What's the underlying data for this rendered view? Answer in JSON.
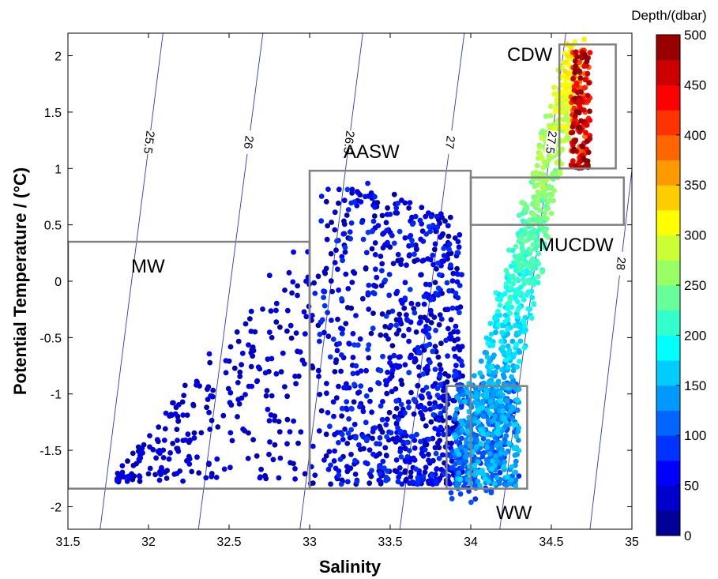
{
  "chart_data": {
    "type": "scatter",
    "xlabel": "Salinity",
    "ylabel": "Potential Temperature / (°C)",
    "xlim": [
      31.5,
      35
    ],
    "ylim": [
      -2.2,
      2.2
    ],
    "xticks": [
      "31.5",
      "32",
      "32.5",
      "33",
      "33.5",
      "34",
      "34.5",
      "35"
    ],
    "yticks": [
      "-2",
      "-1.5",
      "-1",
      "-0.5",
      "0",
      "0.5",
      "1",
      "1.5",
      "2"
    ],
    "colorbar": {
      "title": "Depth/(dbar)",
      "range": [
        0,
        500
      ],
      "ticks": [
        "0",
        "50",
        "100",
        "150",
        "200",
        "250",
        "300",
        "350",
        "400",
        "450",
        "500"
      ],
      "colormap": "jet"
    },
    "isopycnals": [
      {
        "label": "25.5",
        "bottom": [
          31.7,
          -2.2
        ],
        "top": [
          32.09,
          2.2
        ]
      },
      {
        "label": "26",
        "bottom": [
          32.31,
          -2.2
        ],
        "top": [
          32.71,
          2.2
        ]
      },
      {
        "label": "26.5",
        "bottom": [
          32.94,
          -2.2
        ],
        "top": [
          33.33,
          2.2
        ]
      },
      {
        "label": "27",
        "bottom": [
          33.56,
          -2.2
        ],
        "top": [
          33.96,
          2.2
        ]
      },
      {
        "label": "27.5",
        "bottom": [
          34.18,
          -2.2
        ],
        "top": [
          34.59,
          2.2
        ]
      },
      {
        "label": "28",
        "bottom": [
          34.74,
          -2.2
        ],
        "top": [
          35.05,
          1.6
        ]
      }
    ],
    "water_masses": [
      {
        "label": "CDW",
        "s": [
          34.55,
          34.9
        ],
        "t": [
          1.0,
          2.1
        ]
      },
      {
        "label": "AASW",
        "s": [
          33.0,
          34.0
        ],
        "t": [
          -1.84,
          0.98
        ]
      },
      {
        "label": "MUCDW",
        "s": [
          34.0,
          34.95
        ],
        "t": [
          0.5,
          0.92
        ]
      },
      {
        "label": "MW",
        "s": [
          31.5,
          33.0
        ],
        "t": [
          -1.84,
          0.35
        ]
      },
      {
        "label": "WW",
        "s": [
          33.85,
          34.35
        ],
        "t": [
          -1.84,
          -0.93
        ]
      }
    ],
    "point_groups": [
      {
        "description": "MW scatter",
        "s": [
          31.8,
          33.0
        ],
        "t": [
          -1.8,
          0.8
        ],
        "depth": [
          20,
          60
        ],
        "count": 260
      },
      {
        "description": "AASW cloud",
        "s": [
          33.0,
          33.95
        ],
        "t": [
          -1.8,
          0.98
        ],
        "depth": [
          15,
          90
        ],
        "count": 900
      },
      {
        "description": "winter water band",
        "s": [
          33.9,
          34.3
        ],
        "t": [
          -1.82,
          -0.9
        ],
        "depth": [
          80,
          170
        ],
        "count": 380
      },
      {
        "description": "main T-S mixing branch",
        "s": [
          33.9,
          34.7
        ],
        "t": [
          -1.8,
          2.0
        ],
        "depth": [
          90,
          320
        ],
        "count": 820
      },
      {
        "description": "CDW core",
        "s": [
          34.6,
          34.75
        ],
        "t": [
          1.0,
          2.05
        ],
        "depth": [
          380,
          500
        ],
        "count": 180
      }
    ]
  }
}
